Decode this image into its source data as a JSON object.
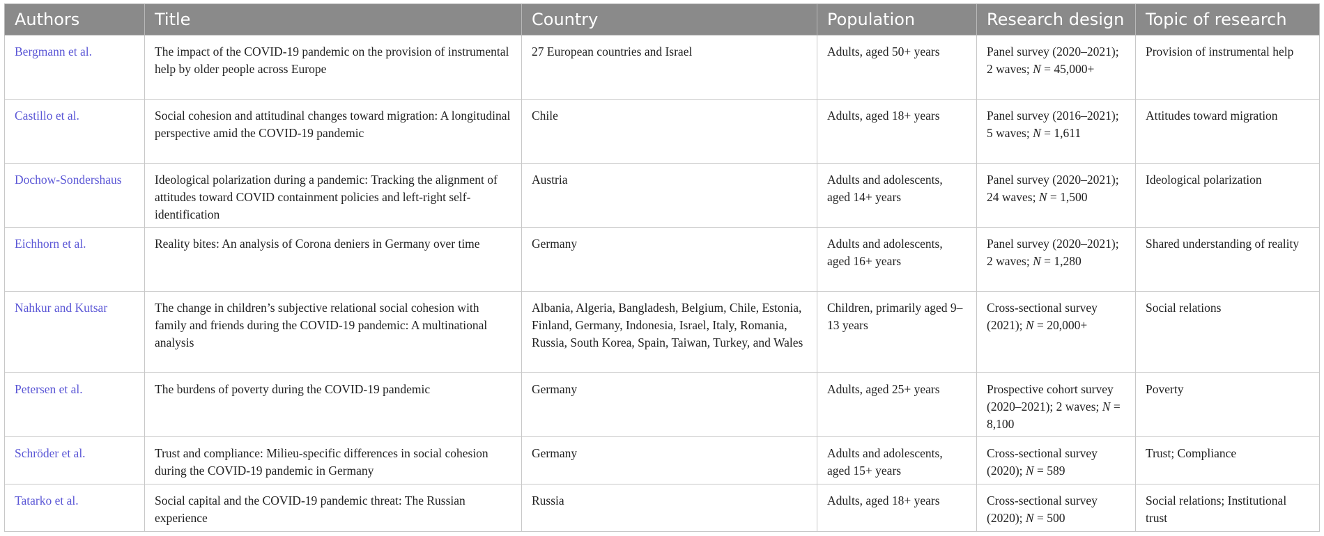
{
  "columns": [
    "Authors",
    "Title",
    "Country",
    "Population",
    "Research design",
    "Topic of research"
  ],
  "rows": [
    {
      "author": "Bergmann et al.",
      "title": "The impact of the COVID-19 pandemic on the provision of instrumental help by older people across Europe",
      "country": "27 European countries and Israel",
      "population": "Adults, aged 50+ years",
      "design_pre": "Panel survey (2020–2021); 2 waves;",
      "n_label": "N",
      "n_value": " = 45,000+",
      "topic": "Provision of instrumental help"
    },
    {
      "author": "Castillo et al.",
      "title": "Social cohesion and attitudinal changes toward migration: A longitudinal perspective amid the COVID-19 pandemic",
      "country": "Chile",
      "population": "Adults, aged 18+ years",
      "design_pre": "Panel survey (2016–2021); 5 waves;",
      "n_label": "N",
      "n_value": " = 1,611",
      "topic": "Attitudes toward migration"
    },
    {
      "author": "Dochow-Sondershaus",
      "title": "Ideological polarization during a pandemic: Tracking the alignment of attitudes toward COVID containment policies and left-right self-identification",
      "country": "Austria",
      "population": "Adults and adolescents, aged 14+ years",
      "design_pre": "Panel survey (2020–2021); 24 waves;",
      "n_label": "N",
      "n_value": " = 1,500",
      "topic": "Ideological polarization"
    },
    {
      "author": "Eichhorn et al.",
      "title": "Reality bites: An analysis of Corona deniers in Germany over time",
      "country": "Germany",
      "population": "Adults and adolescents, aged 16+ years",
      "design_pre": "Panel survey (2020–2021); 2 waves;",
      "n_label": "N",
      "n_value": " = 1,280",
      "topic": "Shared understanding of reality"
    },
    {
      "author": "Nahkur and Kutsar",
      "title": "The change in children’s subjective relational social cohesion with family and friends during the COVID-19 pandemic: A multinational analysis",
      "country": "Albania, Algeria, Bangladesh, Belgium, Chile, Estonia, Finland, Germany, Indonesia, Israel, Italy, Romania, Russia, South Korea, Spain, Taiwan, Turkey, and Wales",
      "population": "Children, primarily aged 9–13 years",
      "design_pre": "Cross-sectional survey (2021);",
      "n_label": "N",
      "n_value": " = 20,000+",
      "topic": "Social relations"
    },
    {
      "author": "Petersen et al.",
      "title": "The burdens of poverty during the COVID-19 pandemic",
      "country": "Germany",
      "population": "Adults, aged 25+ years",
      "design_pre": "Prospective cohort survey (2020–2021); 2 waves;",
      "n_label": "N",
      "n_value": " = 8,100",
      "topic": "Poverty"
    },
    {
      "author": "Schröder et al.",
      "title": "Trust and compliance: Milieu-specific differences in social cohesion during the COVID-19 pandemic in Germany",
      "country": "Germany",
      "population": "Adults and adolescents, aged 15+ years",
      "design_pre": "Cross-sectional survey (2020);",
      "n_label": "N",
      "n_value": " = 589",
      "topic": "Trust; Compliance"
    },
    {
      "author": "Tatarko et al.",
      "title": "Social capital and the COVID-19 pandemic threat: The Russian experience",
      "country": "Russia",
      "population": "Adults, aged 18+ years",
      "design_pre": "Cross-sectional survey (2020);",
      "n_label": "N",
      "n_value": " = 500",
      "topic": "Social relations; Institutional trust"
    }
  ]
}
